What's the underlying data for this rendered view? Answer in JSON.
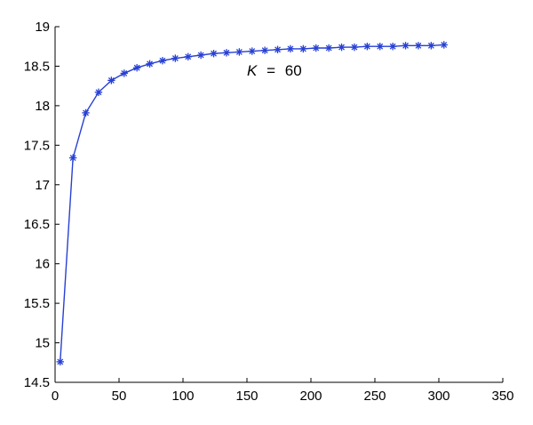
{
  "chart_data": {
    "type": "line",
    "title": "",
    "xlabel": "",
    "ylabel": "",
    "xlim": [
      0,
      350
    ],
    "ylim": [
      14.5,
      19
    ],
    "grid": false,
    "x_ticks": [
      "0",
      "50",
      "100",
      "150",
      "200",
      "250",
      "300",
      "350"
    ],
    "y_ticks": [
      "14.5",
      "15",
      "15.5",
      "16",
      "16.5",
      "17",
      "17.5",
      "18",
      "18.5",
      "19"
    ],
    "annotation": {
      "variable": "K",
      "operator": "=",
      "value": "60",
      "x": 150,
      "y": 18.38
    },
    "series": [
      {
        "marker": "asterisk",
        "color": "#2740d4",
        "x": [
          4,
          14,
          24,
          34,
          44,
          54,
          64,
          74,
          84,
          94,
          104,
          114,
          124,
          134,
          144,
          154,
          164,
          174,
          184,
          194,
          204,
          214,
          224,
          234,
          244,
          254,
          264,
          274,
          284,
          294,
          304
        ],
        "y": [
          14.76,
          17.34,
          17.91,
          18.17,
          18.32,
          18.41,
          18.48,
          18.53,
          18.57,
          18.6,
          18.62,
          18.64,
          18.66,
          18.67,
          18.68,
          18.69,
          18.7,
          18.71,
          18.72,
          18.72,
          18.73,
          18.73,
          18.74,
          18.74,
          18.75,
          18.75,
          18.75,
          18.76,
          18.76,
          18.76,
          18.77
        ]
      }
    ]
  }
}
